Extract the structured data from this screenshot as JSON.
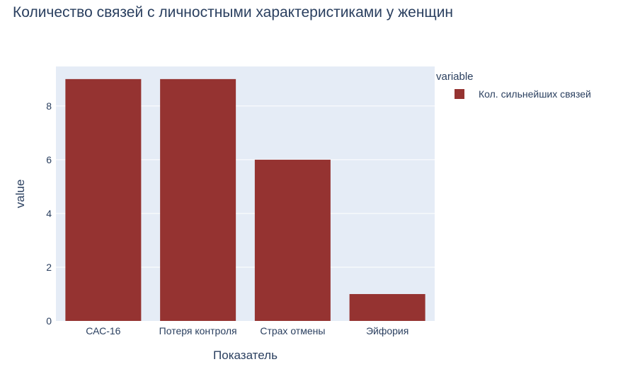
{
  "chart_data": {
    "type": "bar",
    "title": "Количество связей с личностными характеристиками у женщин",
    "xlabel": "Показатель",
    "ylabel": "value",
    "categories": [
      "САС-16",
      "Потеря контроля",
      "Страх отмены",
      "Эйфория"
    ],
    "series": [
      {
        "name": "Кол. сильнейших связей",
        "values": [
          9,
          9,
          6,
          1
        ],
        "color": "#953331"
      }
    ],
    "ylim": [
      0,
      9.47
    ],
    "yticks": [
      0,
      2,
      4,
      6,
      8
    ],
    "legend": {
      "title": "variable",
      "position": "right"
    },
    "grid": true,
    "plot_background": "#e5ecf6"
  }
}
